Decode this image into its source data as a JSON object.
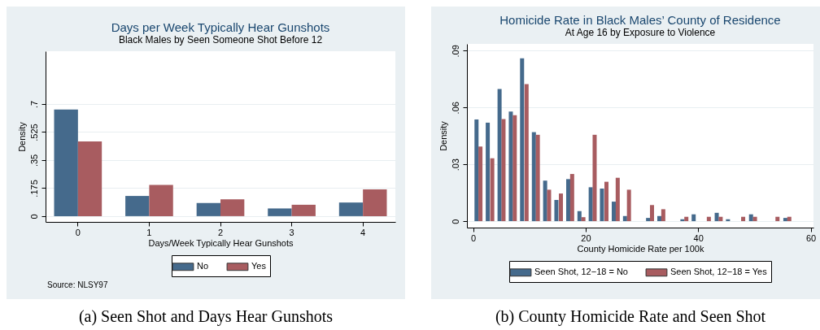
{
  "chart_data": [
    {
      "type": "bar",
      "title": "Days per Week Typically Hear Gunshots",
      "subtitle": "Black Males by Seen Someone Shot Before 12",
      "xlabel": "Days/Week Typically Hear Gunshots",
      "ylabel": "Density",
      "categories": [
        "0",
        "1",
        "2",
        "3",
        "4"
      ],
      "series": [
        {
          "name": "No",
          "color": "#456a8c",
          "values": [
            0.666,
            0.126,
            0.082,
            0.048,
            0.085
          ]
        },
        {
          "name": "Yes",
          "color": "#a85c60",
          "values": [
            0.467,
            0.195,
            0.105,
            0.071,
            0.167
          ]
        }
      ],
      "ylim": [
        -0.036,
        1.03
      ],
      "yticks": [
        0,
        {
          "value": 0.175,
          "label": ".175"
        },
        {
          "value": 0.35,
          "label": ".35"
        },
        {
          "value": 0.525,
          "label": ".525"
        },
        {
          "value": 0.7,
          "label": ".7"
        }
      ],
      "grid": "y",
      "legend": "bottom",
      "annotations": [
        "Source: NLSY97",
        "(a) Seen Shot and Days Hear Gunshots"
      ]
    },
    {
      "type": "bar",
      "title": "Homicide Rate in Black Males’ County of Residence",
      "subtitle": "At Age 16 by Exposure to Violence",
      "xlabel": "County Homicide Rate per 100k",
      "ylabel": "Density",
      "series": [
        {
          "name": "Seen Shot, 12−18 = No",
          "color": "#456a8c",
          "x": [
            0.6,
            2.6,
            4.7,
            6.7,
            8.7,
            10.8,
            12.8,
            14.8,
            16.9,
            18.9,
            20.9,
            22.9,
            25.0,
            27.0,
            31.1,
            33.1,
            37.2,
            39.2,
            43.3,
            45.3,
            49.4,
            55.5
          ],
          "values": [
            0.0537,
            0.052,
            0.0698,
            0.0579,
            0.086,
            0.047,
            0.0214,
            0.0112,
            0.0222,
            0.0053,
            0.0179,
            0.0172,
            0.0103,
            0.0027,
            0.0017,
            0.0027,
            0.001,
            0.0036,
            0.0044,
            0.001,
            0.0036,
            0.0017
          ]
        },
        {
          "name": "Seen Shot, 12−18 = Yes",
          "color": "#a85c60",
          "x": [
            1.3,
            3.4,
            5.4,
            7.4,
            9.5,
            11.5,
            13.5,
            15.6,
            17.6,
            19.6,
            21.6,
            23.7,
            25.7,
            27.7,
            31.8,
            33.8,
            37.9,
            41.9,
            44.0,
            48.0,
            50.1,
            54.1,
            56.2
          ],
          "values": [
            0.0394,
            0.0332,
            0.0539,
            0.0559,
            0.0724,
            0.0456,
            0.0166,
            0.0146,
            0.0249,
            0.0021,
            0.0456,
            0.0208,
            0.0229,
            0.0166,
            0.0085,
            0.0063,
            0.0023,
            0.0023,
            0.0023,
            0.0023,
            0.0023,
            0.0023,
            0.0023
          ]
        }
      ],
      "xlim": [
        -1.1,
        60.5
      ],
      "xticks": [
        0,
        20,
        40,
        60
      ],
      "ylim": [
        -0.0034,
        0.0936
      ],
      "yticks": [
        0,
        {
          "value": 0.03,
          "label": ".03"
        },
        {
          "value": 0.06,
          "label": ".06"
        },
        {
          "value": 0.09,
          "label": ".09"
        }
      ],
      "grid": "y",
      "legend": "bottom",
      "annotations": [
        "(b) County Homicide Rate and Seen Shot"
      ]
    }
  ]
}
